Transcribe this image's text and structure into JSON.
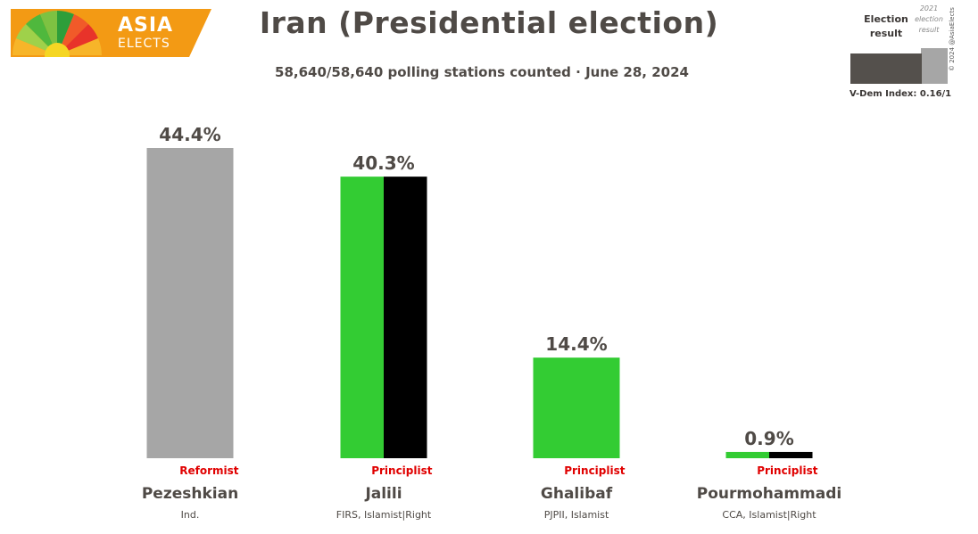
{
  "logo": {
    "line1": "ASIA",
    "line2": "ELECTS"
  },
  "title": "Iran (Presidential election)",
  "subtitle": "58,640/58,640 polling stations counted · June 28, 2024",
  "legend": {
    "current_label_line1": "Election",
    "current_label_line2": "result",
    "previous_label_line1": "2021",
    "previous_label_line2": "election",
    "previous_label_line3": "result",
    "vdem": "V-Dem Index: 0.16/1",
    "copyright": "© 2024 @AsiaElects"
  },
  "colors": {
    "grey": "#a6a6a6",
    "green": "#33cc33",
    "black": "#000000",
    "affiliation": "#e00000",
    "text": "#4f4a46"
  },
  "chart_data": {
    "type": "bar",
    "title": "Iran (Presidential election)",
    "unit": "%",
    "ylim": [
      0,
      44.4
    ],
    "categories": [
      "Pezeshkian",
      "Jalili",
      "Ghalibaf",
      "Pourmohammadi"
    ],
    "values": [
      44.4,
      40.3,
      14.4,
      0.9
    ],
    "value_labels": [
      "44.4%",
      "40.3%",
      "14.4%",
      "0.9%"
    ],
    "affiliations": [
      "Reformist",
      "Principlist",
      "Principlist",
      "Principlist"
    ],
    "parties": [
      "Ind.",
      "FIRS, Islamist|Right",
      "PJPII, Islamist",
      "CCA, Islamist|Right"
    ],
    "bar_colors": [
      [
        "#a6a6a6"
      ],
      [
        "#33cc33",
        "#000000"
      ],
      [
        "#33cc33"
      ],
      [
        "#33cc33",
        "#000000"
      ]
    ]
  }
}
